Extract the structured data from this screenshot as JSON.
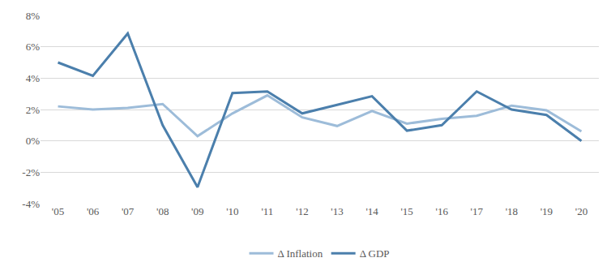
{
  "chart_data": {
    "type": "line",
    "categories": [
      "'05",
      "'06",
      "'07",
      "'08",
      "'09",
      "'10",
      "'11",
      "'12",
      "'13",
      "'14",
      "'15",
      "'16",
      "'17",
      "'18",
      "'19",
      "'20"
    ],
    "series": [
      {
        "name": "Δ Inflation",
        "color": "#9dbcd9",
        "values": [
          2.2,
          2.0,
          2.1,
          2.35,
          0.3,
          1.75,
          2.9,
          1.5,
          0.95,
          1.9,
          1.1,
          1.4,
          1.6,
          2.25,
          1.95,
          0.6
        ]
      },
      {
        "name": "Δ GDP",
        "color": "#4b7fac",
        "values": [
          5.0,
          4.15,
          6.85,
          1.0,
          -2.95,
          3.05,
          3.15,
          1.75,
          2.3,
          2.85,
          0.65,
          1.0,
          3.15,
          2.0,
          1.65,
          0.0
        ]
      }
    ],
    "ylim": [
      -4,
      8
    ],
    "yticks": [
      {
        "value": -4,
        "label": "-4%"
      },
      {
        "value": -2,
        "label": "-2%"
      },
      {
        "value": 0,
        "label": "0%"
      },
      {
        "value": 2,
        "label": "2%"
      },
      {
        "value": 4,
        "label": "4%"
      },
      {
        "value": 6,
        "label": "6%"
      },
      {
        "value": 8,
        "label": "8%"
      }
    ],
    "grid": true,
    "legend": "bottom"
  }
}
